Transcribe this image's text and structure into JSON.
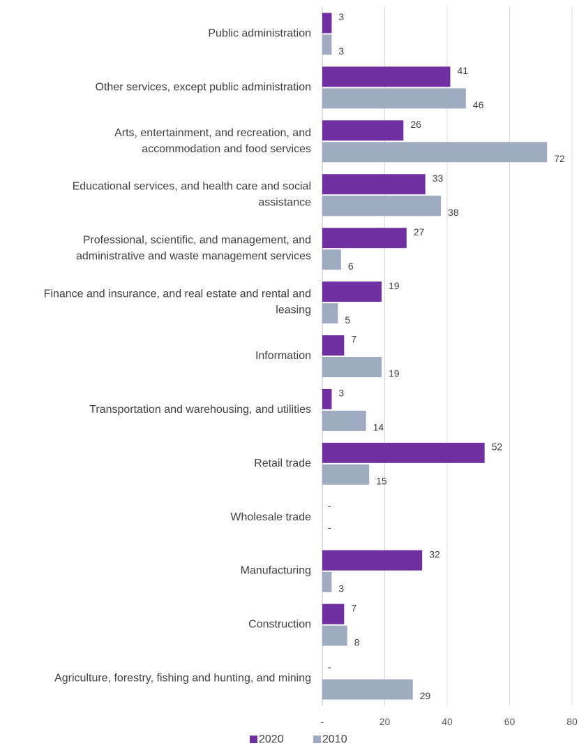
{
  "chart_data": {
    "type": "bar",
    "orientation": "horizontal",
    "categories": [
      [
        "Public administration"
      ],
      [
        "Other services, except public administration"
      ],
      [
        "Arts, entertainment, and recreation, and",
        "accommodation and food services"
      ],
      [
        "Educational services, and health care and social",
        "assistance"
      ],
      [
        "Professional, scientific, and management, and",
        "administrative and waste management services"
      ],
      [
        "Finance and insurance, and real estate and rental and",
        "leasing"
      ],
      [
        "Information"
      ],
      [
        "Transportation and warehousing, and utilities"
      ],
      [
        "Retail trade"
      ],
      [
        "Wholesale trade"
      ],
      [
        "Manufacturing"
      ],
      [
        "Construction"
      ],
      [
        "Agriculture, forestry, fishing and hunting, and mining"
      ]
    ],
    "series": [
      {
        "name": "2020",
        "color": "#7030a0",
        "values": [
          3,
          41,
          26,
          33,
          27,
          19,
          7,
          3,
          52,
          null,
          32,
          7,
          null
        ],
        "labels": [
          "3",
          "41",
          "26",
          "33",
          "27",
          "19",
          "7",
          "3",
          "52",
          "-",
          "32",
          "7",
          "-"
        ]
      },
      {
        "name": "2010",
        "color": "#9eabc0",
        "values": [
          3,
          46,
          72,
          38,
          6,
          5,
          19,
          14,
          15,
          null,
          3,
          8,
          29
        ],
        "labels": [
          "3",
          "46",
          "72",
          "38",
          "6",
          "5",
          "19",
          "14",
          "15",
          "-",
          "3",
          "8",
          "29"
        ]
      }
    ],
    "xlim": [
      0,
      80
    ],
    "xticks": [
      0,
      20,
      40,
      60,
      80
    ],
    "xtick_labels": [
      "-",
      "20",
      "40",
      "60",
      "80"
    ],
    "grid": "vertical",
    "legend": "bottom-center",
    "title": "",
    "xlabel": "",
    "ylabel": ""
  }
}
